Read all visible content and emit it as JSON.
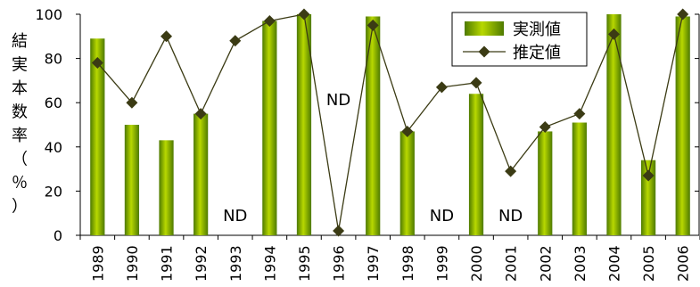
{
  "chart_data": {
    "type": "bar",
    "categories": [
      "1989",
      "1990",
      "1991",
      "1992",
      "1993",
      "1994",
      "1995",
      "1996",
      "1997",
      "1998",
      "1999",
      "2000",
      "2001",
      "2002",
      "2003",
      "2004",
      "2005",
      "2006"
    ],
    "series": [
      {
        "name": "実測値",
        "type": "bar",
        "color": "#6b9a00",
        "values": [
          89,
          50,
          43,
          55,
          null,
          97,
          100,
          null,
          99,
          47,
          null,
          64,
          null,
          47,
          51,
          100,
          34,
          99
        ]
      },
      {
        "name": "推定値",
        "type": "line",
        "color": "#3b3b14",
        "values": [
          78,
          60,
          90,
          55,
          88,
          97,
          100,
          2,
          95,
          47,
          67,
          69,
          29,
          49,
          55,
          91,
          27,
          100
        ]
      }
    ],
    "annotations": [
      {
        "category": "1993",
        "text": "ND"
      },
      {
        "category": "1996",
        "text": "ND"
      },
      {
        "category": "1999",
        "text": "ND"
      },
      {
        "category": "2001",
        "text": "ND"
      }
    ],
    "ylabel": "結実本数率（％）",
    "ylim": [
      0,
      100
    ],
    "yticks": [
      0,
      20,
      40,
      60,
      80,
      100
    ],
    "legend_position": "top-right",
    "grid": false
  }
}
